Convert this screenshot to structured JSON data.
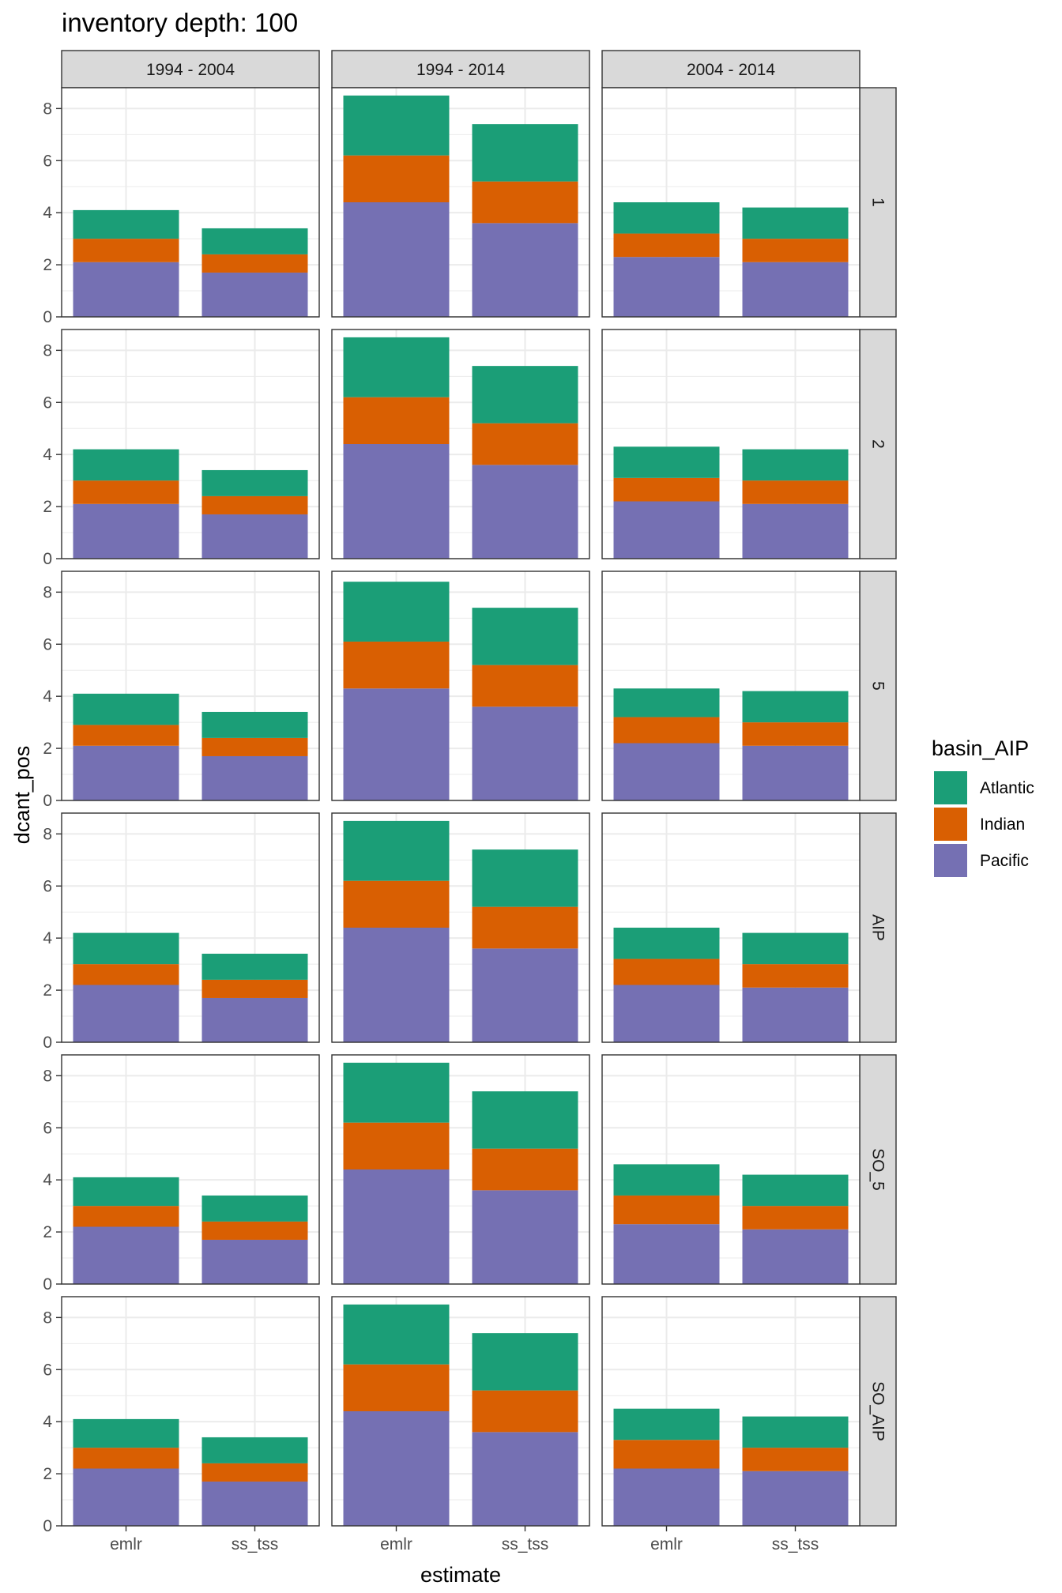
{
  "chart_data": {
    "type": "bar",
    "stacked": true,
    "faceted": true,
    "title": "inventory depth: 100",
    "xlabel": "estimate",
    "ylabel": "dcant_pos",
    "ylim": [
      0,
      8.8
    ],
    "yticks": [
      0,
      2,
      4,
      6,
      8
    ],
    "grid": true,
    "legend": {
      "title": "basin_AIP",
      "position": "right",
      "entries": [
        "Atlantic",
        "Indian",
        "Pacific"
      ]
    },
    "colors": {
      "Atlantic": "#1b9e77",
      "Indian": "#d95f02",
      "Pacific": "#7570b3"
    },
    "col_facets": [
      "1994 - 2004",
      "1994 - 2014",
      "2004 - 2014"
    ],
    "row_facets": [
      "1",
      "2",
      "5",
      "AIP",
      "SO_5",
      "SO_AIP"
    ],
    "categories": [
      "emlr",
      "ss_tss"
    ],
    "stack_order": [
      "Pacific",
      "Indian",
      "Atlantic"
    ],
    "panels": [
      {
        "row": "1",
        "col": "1994 - 2004",
        "Pacific": [
          2.1,
          1.7
        ],
        "Indian": [
          0.9,
          0.7
        ],
        "Atlantic": [
          1.1,
          1.0
        ]
      },
      {
        "row": "1",
        "col": "1994 - 2014",
        "Pacific": [
          4.4,
          3.6
        ],
        "Indian": [
          1.8,
          1.6
        ],
        "Atlantic": [
          2.3,
          2.2
        ]
      },
      {
        "row": "1",
        "col": "2004 - 2014",
        "Pacific": [
          2.3,
          2.1
        ],
        "Indian": [
          0.9,
          0.9
        ],
        "Atlantic": [
          1.2,
          1.2
        ]
      },
      {
        "row": "2",
        "col": "1994 - 2004",
        "Pacific": [
          2.1,
          1.7
        ],
        "Indian": [
          0.9,
          0.7
        ],
        "Atlantic": [
          1.2,
          1.0
        ]
      },
      {
        "row": "2",
        "col": "1994 - 2014",
        "Pacific": [
          4.4,
          3.6
        ],
        "Indian": [
          1.8,
          1.6
        ],
        "Atlantic": [
          2.3,
          2.2
        ]
      },
      {
        "row": "2",
        "col": "2004 - 2014",
        "Pacific": [
          2.2,
          2.1
        ],
        "Indian": [
          0.9,
          0.9
        ],
        "Atlantic": [
          1.2,
          1.2
        ]
      },
      {
        "row": "5",
        "col": "1994 - 2004",
        "Pacific": [
          2.1,
          1.7
        ],
        "Indian": [
          0.8,
          0.7
        ],
        "Atlantic": [
          1.2,
          1.0
        ]
      },
      {
        "row": "5",
        "col": "1994 - 2014",
        "Pacific": [
          4.3,
          3.6
        ],
        "Indian": [
          1.8,
          1.6
        ],
        "Atlantic": [
          2.3,
          2.2
        ]
      },
      {
        "row": "5",
        "col": "2004 - 2014",
        "Pacific": [
          2.2,
          2.1
        ],
        "Indian": [
          1.0,
          0.9
        ],
        "Atlantic": [
          1.1,
          1.2
        ]
      },
      {
        "row": "AIP",
        "col": "1994 - 2004",
        "Pacific": [
          2.2,
          1.7
        ],
        "Indian": [
          0.8,
          0.7
        ],
        "Atlantic": [
          1.2,
          1.0
        ]
      },
      {
        "row": "AIP",
        "col": "1994 - 2014",
        "Pacific": [
          4.4,
          3.6
        ],
        "Indian": [
          1.8,
          1.6
        ],
        "Atlantic": [
          2.3,
          2.2
        ]
      },
      {
        "row": "AIP",
        "col": "2004 - 2014",
        "Pacific": [
          2.2,
          2.1
        ],
        "Indian": [
          1.0,
          0.9
        ],
        "Atlantic": [
          1.2,
          1.2
        ]
      },
      {
        "row": "SO_5",
        "col": "1994 - 2004",
        "Pacific": [
          2.2,
          1.7
        ],
        "Indian": [
          0.8,
          0.7
        ],
        "Atlantic": [
          1.1,
          1.0
        ]
      },
      {
        "row": "SO_5",
        "col": "1994 - 2014",
        "Pacific": [
          4.4,
          3.6
        ],
        "Indian": [
          1.8,
          1.6
        ],
        "Atlantic": [
          2.3,
          2.2
        ]
      },
      {
        "row": "SO_5",
        "col": "2004 - 2014",
        "Pacific": [
          2.3,
          2.1
        ],
        "Indian": [
          1.1,
          0.9
        ],
        "Atlantic": [
          1.2,
          1.2
        ]
      },
      {
        "row": "SO_AIP",
        "col": "1994 - 2004",
        "Pacific": [
          2.2,
          1.7
        ],
        "Indian": [
          0.8,
          0.7
        ],
        "Atlantic": [
          1.1,
          1.0
        ]
      },
      {
        "row": "SO_AIP",
        "col": "1994 - 2014",
        "Pacific": [
          4.4,
          3.6
        ],
        "Indian": [
          1.8,
          1.6
        ],
        "Atlantic": [
          2.3,
          2.2
        ]
      },
      {
        "row": "SO_AIP",
        "col": "2004 - 2014",
        "Pacific": [
          2.2,
          2.1
        ],
        "Indian": [
          1.1,
          0.9
        ],
        "Atlantic": [
          1.2,
          1.2
        ]
      }
    ]
  }
}
